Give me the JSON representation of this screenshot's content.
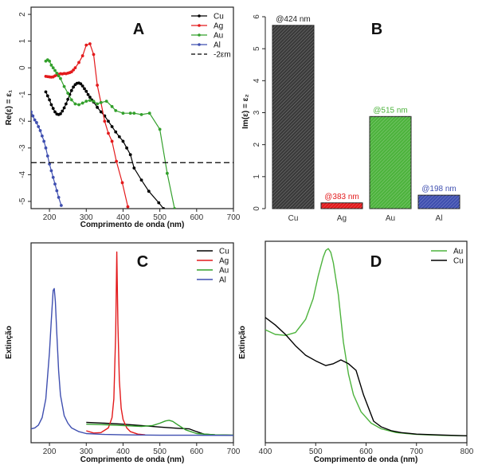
{
  "chart_data": [
    {
      "panel": "A",
      "type": "line",
      "title": "A",
      "xlabel": "Comprimento de onda (nm)",
      "ylabel": "Re(ε) = ε₁",
      "xlim": [
        150,
        700
      ],
      "ylim": [
        -5.27,
        2.27
      ],
      "xticks": [
        200,
        300,
        400,
        500,
        600,
        700
      ],
      "yticks": [
        2,
        1,
        0,
        -1,
        -2,
        -3,
        -4,
        -5
      ],
      "legend_position": "top-right",
      "grid": false,
      "series": [
        {
          "name": "Cu",
          "color": "#000000",
          "x": [
            190,
            195,
            200,
            205,
            210,
            215,
            220,
            225,
            230,
            235,
            240,
            245,
            250,
            255,
            260,
            265,
            270,
            275,
            280,
            285,
            290,
            295,
            300,
            305,
            310,
            315,
            320,
            330,
            340,
            350,
            360,
            370,
            380,
            390,
            400,
            410,
            420,
            430,
            450,
            470,
            497,
            510
          ],
          "y": [
            -0.9,
            -1.05,
            -1.2,
            -1.38,
            -1.52,
            -1.65,
            -1.73,
            -1.75,
            -1.72,
            -1.62,
            -1.5,
            -1.35,
            -1.18,
            -1.0,
            -0.85,
            -0.72,
            -0.63,
            -0.58,
            -0.57,
            -0.6,
            -0.68,
            -0.78,
            -0.88,
            -1.0,
            -1.1,
            -1.2,
            -1.28,
            -1.48,
            -1.65,
            -1.8,
            -2.0,
            -2.2,
            -2.4,
            -2.58,
            -2.75,
            -3.0,
            -3.25,
            -3.75,
            -4.2,
            -4.62,
            -5.05,
            -5.27
          ]
        },
        {
          "name": "Ag",
          "color": "#e31a1c",
          "x": [
            190,
            195,
            200,
            205,
            210,
            215,
            220,
            225,
            230,
            235,
            240,
            245,
            250,
            255,
            260,
            265,
            270,
            280,
            290,
            300,
            310,
            320,
            330,
            340,
            350,
            360,
            370,
            382,
            398,
            413
          ],
          "y": [
            -0.32,
            -0.33,
            -0.34,
            -0.35,
            -0.34,
            -0.3,
            -0.27,
            -0.24,
            -0.22,
            -0.23,
            -0.21,
            -0.22,
            -0.2,
            -0.18,
            -0.15,
            -0.08,
            0.0,
            0.2,
            0.45,
            0.85,
            0.9,
            0.5,
            -0.65,
            -1.3,
            -2.0,
            -2.45,
            -2.75,
            -3.5,
            -4.3,
            -5.2
          ]
        },
        {
          "name": "Au",
          "color": "#33a02c",
          "x": [
            190,
            195,
            200,
            205,
            210,
            215,
            220,
            225,
            230,
            240,
            250,
            260,
            270,
            280,
            290,
            300,
            310,
            320,
            330,
            340,
            355,
            370,
            380,
            400,
            420,
            430,
            450,
            472,
            500,
            520,
            540
          ],
          "y": [
            0.25,
            0.3,
            0.25,
            0.1,
            0.0,
            -0.1,
            -0.2,
            -0.3,
            -0.4,
            -0.7,
            -0.95,
            -1.2,
            -1.35,
            -1.38,
            -1.32,
            -1.25,
            -1.22,
            -1.25,
            -1.35,
            -1.3,
            -1.25,
            -1.45,
            -1.6,
            -1.7,
            -1.7,
            -1.7,
            -1.75,
            -1.7,
            -2.3,
            -3.95,
            -5.27
          ]
        },
        {
          "name": "Al",
          "color": "#3f4fb0",
          "x": [
            150,
            155,
            160,
            165,
            170,
            175,
            180,
            185,
            190,
            195,
            200,
            205,
            210,
            215,
            220,
            225,
            232
          ],
          "y": [
            -1.65,
            -1.8,
            -1.95,
            -2.05,
            -2.2,
            -2.35,
            -2.55,
            -2.75,
            -3.0,
            -3.3,
            -3.6,
            -3.85,
            -4.1,
            -4.35,
            -4.6,
            -4.85,
            -5.15
          ]
        },
        {
          "name": "-2εm",
          "color": "#000000",
          "dashed": true,
          "y_constant": -3.55
        }
      ]
    },
    {
      "panel": "B",
      "type": "bar",
      "title": "B",
      "xlabel": "",
      "ylabel": "Im(ε) = ε₂",
      "ylim": [
        0,
        6
      ],
      "yticks": [
        0,
        1,
        2,
        3,
        4,
        5,
        6
      ],
      "categories": [
        "Cu",
        "Ag",
        "Au",
        "Al"
      ],
      "values": [
        5.73,
        0.18,
        2.88,
        0.42
      ],
      "annotations": [
        "@424 nm",
        "@383 nm",
        "@515 nm",
        "@198 nm"
      ],
      "colors": [
        "#3a3a3a",
        "#e31a1c",
        "#4db33d",
        "#3f4fb0"
      ],
      "annotation_colors": [
        "#222222",
        "#e31a1c",
        "#4db33d",
        "#3f4fb0"
      ],
      "grid": false
    },
    {
      "panel": "C",
      "type": "line",
      "title": "C",
      "xlabel": "Comprimento de onda (nm)",
      "ylabel": "Extinção",
      "xlim": [
        150,
        700
      ],
      "ylim": [
        0,
        1
      ],
      "xticks": [
        200,
        300,
        400,
        500,
        600,
        700
      ],
      "legend_position": "top-right",
      "grid": false,
      "series": [
        {
          "name": "Cu",
          "color": "#000000",
          "x": [
            300,
            350,
            400,
            450,
            500,
            550,
            580,
            600,
            620,
            650,
            700
          ],
          "y": [
            0.075,
            0.07,
            0.065,
            0.058,
            0.05,
            0.043,
            0.04,
            0.025,
            0.012,
            0.008,
            0.006
          ]
        },
        {
          "name": "Ag",
          "color": "#e31a1c",
          "x": [
            300,
            320,
            340,
            360,
            370,
            375,
            380,
            383,
            386,
            390,
            395,
            400,
            410,
            420,
            440,
            460
          ],
          "y": [
            0.03,
            0.018,
            0.02,
            0.045,
            0.1,
            0.2,
            0.55,
            0.985,
            0.6,
            0.3,
            0.15,
            0.09,
            0.045,
            0.025,
            0.012,
            0.008
          ]
        },
        {
          "name": "Au",
          "color": "#33a02c",
          "x": [
            300,
            350,
            400,
            450,
            480,
            500,
            515,
            525,
            535,
            550,
            570,
            600,
            650,
            700
          ],
          "y": [
            0.065,
            0.062,
            0.058,
            0.053,
            0.058,
            0.07,
            0.082,
            0.086,
            0.08,
            0.06,
            0.035,
            0.015,
            0.008,
            0.006
          ]
        },
        {
          "name": "Al",
          "color": "#3f4fb0",
          "x": [
            150,
            160,
            170,
            180,
            190,
            200,
            205,
            210,
            213,
            216,
            220,
            225,
            230,
            240,
            250,
            260,
            280,
            300,
            350,
            400,
            500,
            600,
            700
          ],
          "y": [
            0.04,
            0.045,
            0.06,
            0.1,
            0.2,
            0.45,
            0.62,
            0.78,
            0.79,
            0.72,
            0.55,
            0.35,
            0.22,
            0.11,
            0.07,
            0.045,
            0.025,
            0.015,
            0.01,
            0.008,
            0.006,
            0.006,
            0.005
          ]
        }
      ]
    },
    {
      "panel": "D",
      "type": "line",
      "title": "D",
      "xlabel": "Comprimento de onda (nm)",
      "ylabel": "Extinção",
      "xlim": [
        400,
        800
      ],
      "ylim": [
        0,
        1
      ],
      "xticks": [
        400,
        500,
        600,
        700,
        800
      ],
      "legend_position": "top-right",
      "grid": false,
      "series": [
        {
          "name": "Au",
          "color": "#4db33d",
          "x": [
            400,
            420,
            440,
            460,
            480,
            495,
            505,
            515,
            520,
            525,
            530,
            535,
            545,
            555,
            565,
            575,
            590,
            610,
            630,
            660,
            700,
            750,
            800
          ],
          "y": [
            0.565,
            0.54,
            0.535,
            0.55,
            0.62,
            0.73,
            0.85,
            0.95,
            0.985,
            0.995,
            0.975,
            0.92,
            0.75,
            0.5,
            0.33,
            0.22,
            0.13,
            0.07,
            0.04,
            0.02,
            0.01,
            0.005,
            0.003
          ]
        },
        {
          "name": "Cu",
          "color": "#000000",
          "x": [
            400,
            420,
            440,
            460,
            480,
            500,
            520,
            535,
            550,
            565,
            580,
            595,
            615,
            630,
            650,
            670,
            700,
            750,
            800
          ],
          "y": [
            0.63,
            0.59,
            0.54,
            0.48,
            0.43,
            0.4,
            0.375,
            0.385,
            0.405,
            0.385,
            0.35,
            0.22,
            0.08,
            0.05,
            0.03,
            0.02,
            0.012,
            0.007,
            0.003
          ]
        }
      ]
    }
  ]
}
